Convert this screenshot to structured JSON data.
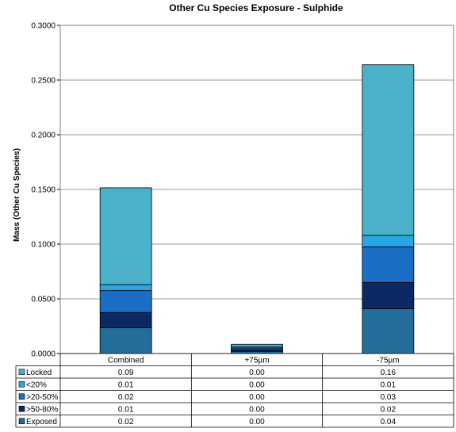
{
  "chart_data": {
    "type": "bar",
    "stacked": true,
    "title": "Other Cu Species Exposure - Sulphide",
    "xlabel": "",
    "ylabel": "Mass (Other Cu Species)",
    "ylim": [
      0,
      0.3
    ],
    "yticks": [
      "0.0000",
      "0.0500",
      "0.1000",
      "0.1500",
      "0.2000",
      "0.2500",
      "0.3000"
    ],
    "grid": true,
    "legend_placement": "data-table-left",
    "categories": [
      "Combined",
      "+75µm",
      "-75µm"
    ],
    "series": [
      {
        "name": "Exposed",
        "color": "#236d9a",
        "values": [
          0.0235,
          0.002,
          0.041
        ],
        "table_values": [
          "0.02",
          "0.00",
          "0.04"
        ]
      },
      {
        "name": ">50-80%",
        "color": "#0b2a63",
        "values": [
          0.014,
          0.0015,
          0.024
        ],
        "table_values": [
          "0.01",
          "0.00",
          "0.02"
        ]
      },
      {
        "name": ">20-50%",
        "color": "#1b6ec5",
        "values": [
          0.02,
          0.0015,
          0.0325
        ],
        "table_values": [
          "0.02",
          "0.00",
          "0.03"
        ]
      },
      {
        "name": "<20%",
        "color": "#29a6e3",
        "values": [
          0.0055,
          0.001,
          0.0105
        ],
        "table_values": [
          "0.01",
          "0.00",
          "0.01"
        ]
      },
      {
        "name": "Locked",
        "color": "#4bb0ca",
        "values": [
          0.0885,
          0.0025,
          0.156
        ],
        "table_values": [
          "0.09",
          "0.00",
          "0.16"
        ]
      }
    ]
  }
}
